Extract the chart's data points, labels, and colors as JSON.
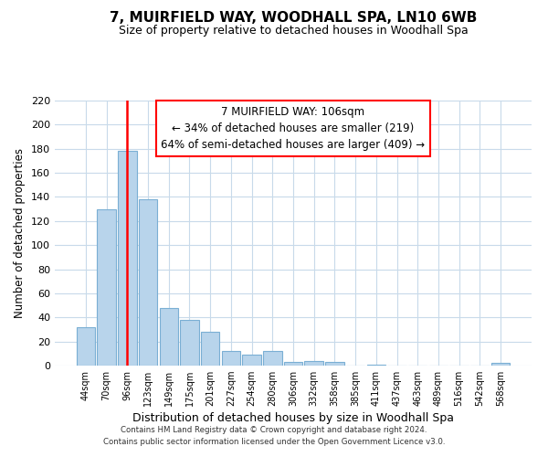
{
  "title": "7, MUIRFIELD WAY, WOODHALL SPA, LN10 6WB",
  "subtitle": "Size of property relative to detached houses in Woodhall Spa",
  "xlabel": "Distribution of detached houses by size in Woodhall Spa",
  "ylabel": "Number of detached properties",
  "bar_labels": [
    "44sqm",
    "70sqm",
    "96sqm",
    "123sqm",
    "149sqm",
    "175sqm",
    "201sqm",
    "227sqm",
    "254sqm",
    "280sqm",
    "306sqm",
    "332sqm",
    "358sqm",
    "385sqm",
    "411sqm",
    "437sqm",
    "463sqm",
    "489sqm",
    "516sqm",
    "542sqm",
    "568sqm"
  ],
  "bar_heights": [
    32,
    130,
    178,
    138,
    48,
    38,
    28,
    12,
    9,
    12,
    3,
    4,
    3,
    0,
    1,
    0,
    0,
    0,
    0,
    0,
    2
  ],
  "bar_color": "#b8d4eb",
  "bar_edge_color": "#7aafd4",
  "vline_x_index": 2,
  "vline_color": "red",
  "annotation_title": "7 MUIRFIELD WAY: 106sqm",
  "annotation_line1": "← 34% of detached houses are smaller (219)",
  "annotation_line2": "64% of semi-detached houses are larger (409) →",
  "ylim_max": 220,
  "yticks": [
    0,
    20,
    40,
    60,
    80,
    100,
    120,
    140,
    160,
    180,
    200,
    220
  ],
  "footer_line1": "Contains HM Land Registry data © Crown copyright and database right 2024.",
  "footer_line2": "Contains public sector information licensed under the Open Government Licence v3.0.",
  "bg_color": "#ffffff",
  "grid_color": "#c8daea"
}
